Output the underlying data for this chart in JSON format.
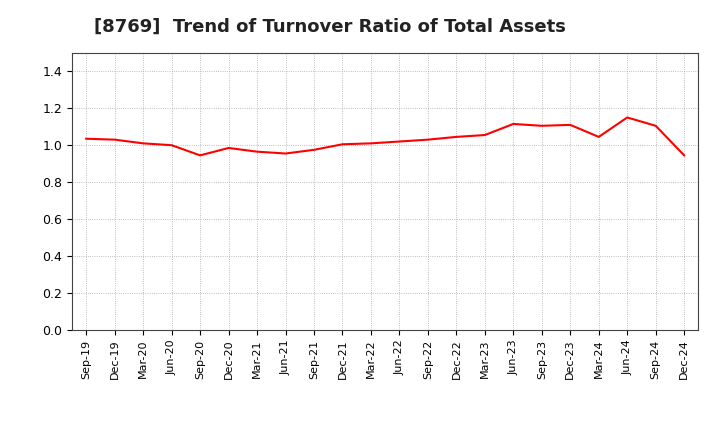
{
  "title": "[8769]  Trend of Turnover Ratio of Total Assets",
  "title_fontsize": 13,
  "line_color": "#FF0000",
  "line_width": 1.5,
  "background_color": "#FFFFFF",
  "grid_color": "#AAAAAA",
  "ylim": [
    0.0,
    1.5
  ],
  "yticks": [
    0.0,
    0.2,
    0.4,
    0.6,
    0.8,
    1.0,
    1.2,
    1.4
  ],
  "x_labels": [
    "Sep-19",
    "Dec-19",
    "Mar-20",
    "Jun-20",
    "Sep-20",
    "Dec-20",
    "Mar-21",
    "Jun-21",
    "Sep-21",
    "Dec-21",
    "Mar-22",
    "Jun-22",
    "Sep-22",
    "Dec-22",
    "Mar-23",
    "Jun-23",
    "Sep-23",
    "Dec-23",
    "Mar-24",
    "Jun-24",
    "Sep-24",
    "Dec-24"
  ],
  "values": [
    1.035,
    1.03,
    1.01,
    1.0,
    0.945,
    0.985,
    0.965,
    0.955,
    0.975,
    1.005,
    1.01,
    1.02,
    1.03,
    1.045,
    1.055,
    1.115,
    1.105,
    1.11,
    1.045,
    1.15,
    1.105,
    0.945
  ]
}
